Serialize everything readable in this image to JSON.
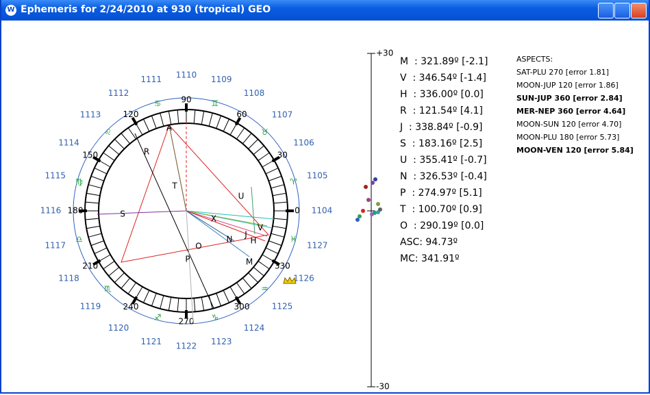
{
  "window": {
    "title": "Ephemeris for 2/24/2010 at 930 (tropical) GEO"
  },
  "wheel": {
    "house_labels": [
      "1104",
      "1105",
      "1106",
      "1107",
      "1108",
      "1109",
      "1110",
      "1111",
      "1112",
      "1113",
      "1114",
      "1115",
      "1116",
      "1117",
      "1118",
      "1119",
      "1120",
      "1121",
      "1122",
      "1123",
      "1124",
      "1125",
      "1126",
      "1127"
    ],
    "degree_labels": [
      "0",
      "30",
      "60",
      "90",
      "120",
      "150",
      "180",
      "210",
      "240",
      "270",
      "300",
      "330"
    ],
    "signs": [
      "♈",
      "♉",
      "♊",
      "♋",
      "♌",
      "♍",
      "♎",
      "♏",
      "♐",
      "♑",
      "♒",
      "♓"
    ],
    "planets": [
      "A",
      "R",
      "T",
      "S",
      "U",
      "X",
      "V",
      "N",
      "J",
      "H",
      "M",
      "O",
      "P"
    ]
  },
  "scale": {
    "top": "+30",
    "bottom": "-30"
  },
  "positions": [
    "M  : 321.89º [-2.1]",
    "V  : 346.54º [-1.4]",
    "H  : 336.00º [0.0]",
    "R  : 121.54º [4.1]",
    "J  : 338.84º [-0.9]",
    "S  : 183.16º [2.5]",
    "U  : 355.41º [-0.7]",
    "N  : 326.53º [-0.4]",
    "P  : 274.97º [5.1]",
    "T  : 100.70º [0.9]",
    "O  : 290.19º [0.0]",
    "ASC: 94.73º",
    "MC: 341.91º"
  ],
  "aspects": {
    "title": "ASPECTS:",
    "items": [
      "SAT-PLU 270 [error 1.81]",
      "MOON-JUP 120 [error 1.86]",
      "SUN-JUP 360 [error 2.84]",
      "MER-NEP 360 [error 4.64]",
      "MOON-SUN 120 [error 4.70]",
      "MOON-PLU 180 [error 5.73]",
      "MOON-VEN 120 [error 5.84]"
    ]
  }
}
